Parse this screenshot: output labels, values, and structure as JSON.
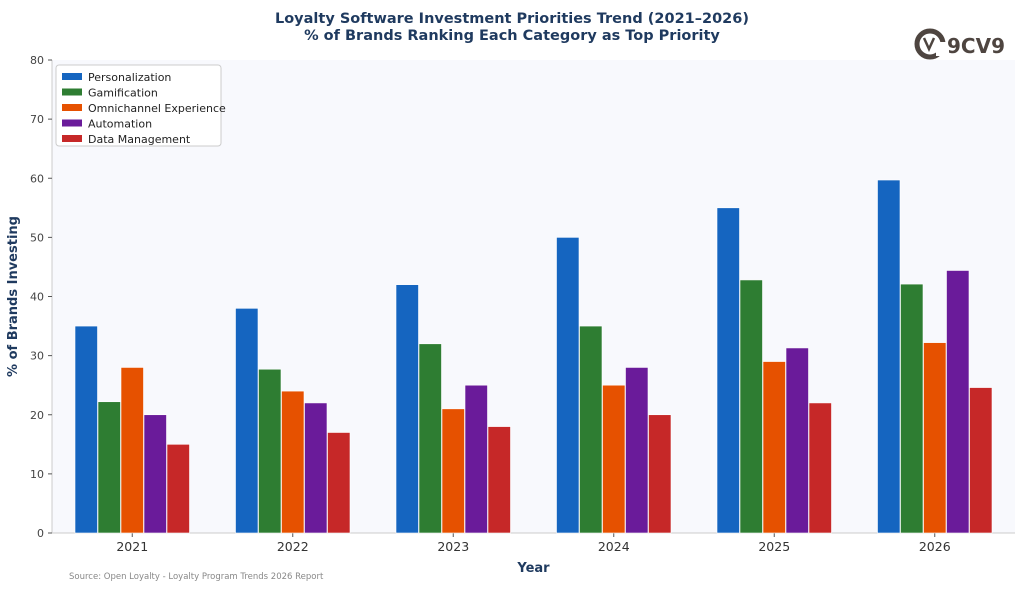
{
  "chart_data": {
    "type": "bar",
    "title": "Loyalty Software Investment Priorities Trend (2021–2026)",
    "subtitle": "% of Brands Ranking Each Category as Top Priority",
    "xlabel": "Year",
    "ylabel": "% of Brands Investing",
    "ylim": [
      0,
      80
    ],
    "yticks": [
      0,
      10,
      20,
      30,
      40,
      50,
      60,
      70,
      80
    ],
    "grid": false,
    "legend_position": "top-left",
    "categories": [
      "2021",
      "2022",
      "2023",
      "2024",
      "2025",
      "2026"
    ],
    "series": [
      {
        "name": "Personalization",
        "color": "#1565c0",
        "values": [
          35,
          38,
          42,
          50,
          55,
          59.7
        ]
      },
      {
        "name": "Gamification",
        "color": "#2e7d32",
        "values": [
          22.2,
          27.7,
          32,
          35,
          42.8,
          42.1
        ]
      },
      {
        "name": "Omnichannel Experience",
        "color": "#e65100",
        "values": [
          28,
          24,
          21,
          25,
          29,
          32.2
        ]
      },
      {
        "name": "Automation",
        "color": "#6a1b9a",
        "values": [
          20,
          22,
          25,
          28,
          31.3,
          44.4
        ]
      },
      {
        "name": "Data Management",
        "color": "#c62828",
        "values": [
          15,
          17,
          18,
          20,
          22,
          24.6
        ]
      }
    ]
  },
  "source": "Source: Open Loyalty - Loyalty Program Trends 2026 Report",
  "logo": {
    "text": "9CV9",
    "icon": "9cv9-logo-icon",
    "color": "#4e4540"
  },
  "colors": {
    "title": "#1f3a5f",
    "plot_background": "#f8f9fd"
  }
}
